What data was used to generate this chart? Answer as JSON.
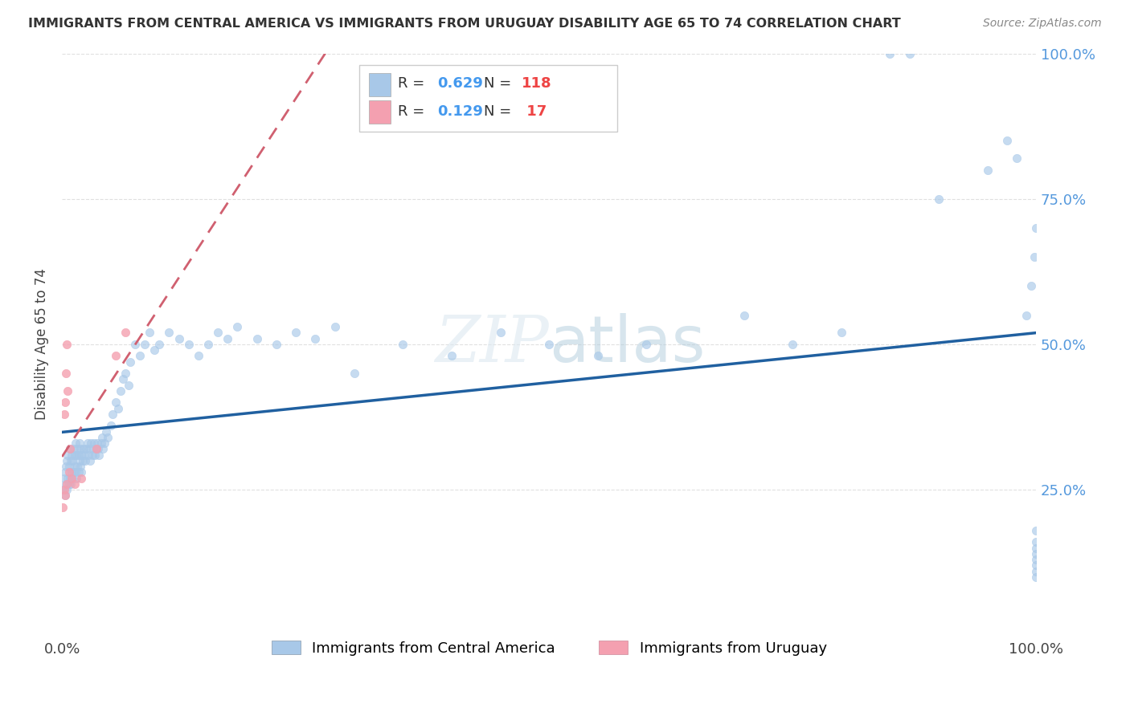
{
  "title": "IMMIGRANTS FROM CENTRAL AMERICA VS IMMIGRANTS FROM URUGUAY DISABILITY AGE 65 TO 74 CORRELATION CHART",
  "source": "Source: ZipAtlas.com",
  "ylabel": "Disability Age 65 to 74",
  "right_yticks": [
    "25.0%",
    "50.0%",
    "75.0%",
    "100.0%"
  ],
  "right_ytick_vals": [
    0.25,
    0.5,
    0.75,
    1.0
  ],
  "legend1_label": "Immigrants from Central America",
  "legend2_label": "Immigrants from Uruguay",
  "R1": 0.629,
  "N1": 118,
  "R2": 0.129,
  "N2": 17,
  "color1": "#a8c8e8",
  "color2": "#f4a0b0",
  "trendline1_color": "#2060a0",
  "trendline2_color": "#d06070",
  "watermark_color": "#c8d8e8",
  "background_color": "#ffffff",
  "grid_color": "#e0e0e0",
  "blue_x": [
    0.001,
    0.002,
    0.003,
    0.003,
    0.004,
    0.004,
    0.005,
    0.005,
    0.006,
    0.006,
    0.007,
    0.007,
    0.008,
    0.008,
    0.009,
    0.009,
    0.01,
    0.01,
    0.011,
    0.011,
    0.012,
    0.012,
    0.013,
    0.013,
    0.014,
    0.014,
    0.015,
    0.015,
    0.016,
    0.016,
    0.017,
    0.017,
    0.018,
    0.018,
    0.019,
    0.019,
    0.02,
    0.02,
    0.021,
    0.022,
    0.023,
    0.024,
    0.025,
    0.026,
    0.027,
    0.028,
    0.029,
    0.03,
    0.031,
    0.032,
    0.033,
    0.034,
    0.035,
    0.036,
    0.037,
    0.038,
    0.04,
    0.041,
    0.042,
    0.044,
    0.045,
    0.047,
    0.05,
    0.052,
    0.055,
    0.058,
    0.06,
    0.063,
    0.065,
    0.068,
    0.07,
    0.075,
    0.08,
    0.085,
    0.09,
    0.095,
    0.1,
    0.11,
    0.12,
    0.13,
    0.14,
    0.15,
    0.16,
    0.17,
    0.18,
    0.2,
    0.22,
    0.24,
    0.26,
    0.28,
    0.3,
    0.35,
    0.4,
    0.45,
    0.5,
    0.55,
    0.6,
    0.7,
    0.75,
    0.8,
    0.85,
    0.87,
    0.9,
    0.95,
    0.97,
    0.98,
    0.99,
    0.995,
    0.998,
    1.0,
    1.0,
    1.0,
    1.0,
    1.0,
    1.0,
    1.0,
    1.0,
    1.0
  ],
  "blue_y": [
    0.25,
    0.27,
    0.24,
    0.28,
    0.26,
    0.29,
    0.25,
    0.3,
    0.27,
    0.31,
    0.26,
    0.29,
    0.27,
    0.32,
    0.26,
    0.3,
    0.28,
    0.31,
    0.27,
    0.3,
    0.28,
    0.32,
    0.29,
    0.31,
    0.28,
    0.33,
    0.27,
    0.31,
    0.29,
    0.32,
    0.28,
    0.31,
    0.3,
    0.33,
    0.29,
    0.32,
    0.28,
    0.31,
    0.3,
    0.32,
    0.31,
    0.3,
    0.32,
    0.33,
    0.31,
    0.32,
    0.3,
    0.33,
    0.31,
    0.32,
    0.33,
    0.31,
    0.32,
    0.33,
    0.32,
    0.31,
    0.33,
    0.34,
    0.32,
    0.33,
    0.35,
    0.34,
    0.36,
    0.38,
    0.4,
    0.39,
    0.42,
    0.44,
    0.45,
    0.43,
    0.47,
    0.5,
    0.48,
    0.5,
    0.52,
    0.49,
    0.5,
    0.52,
    0.51,
    0.5,
    0.48,
    0.5,
    0.52,
    0.51,
    0.53,
    0.51,
    0.5,
    0.52,
    0.51,
    0.53,
    0.45,
    0.5,
    0.48,
    0.52,
    0.5,
    0.48,
    0.5,
    0.55,
    0.5,
    0.52,
    1.0,
    1.0,
    0.75,
    0.8,
    0.85,
    0.82,
    0.55,
    0.6,
    0.65,
    0.7,
    0.1,
    0.12,
    0.14,
    0.16,
    0.18,
    0.11,
    0.13,
    0.15
  ],
  "pink_x": [
    0.001,
    0.002,
    0.002,
    0.003,
    0.003,
    0.004,
    0.005,
    0.005,
    0.006,
    0.007,
    0.008,
    0.01,
    0.013,
    0.02,
    0.035,
    0.055,
    0.065
  ],
  "pink_y": [
    0.22,
    0.25,
    0.38,
    0.24,
    0.4,
    0.45,
    0.26,
    0.5,
    0.42,
    0.28,
    0.32,
    0.27,
    0.26,
    0.27,
    0.32,
    0.48,
    0.52
  ]
}
